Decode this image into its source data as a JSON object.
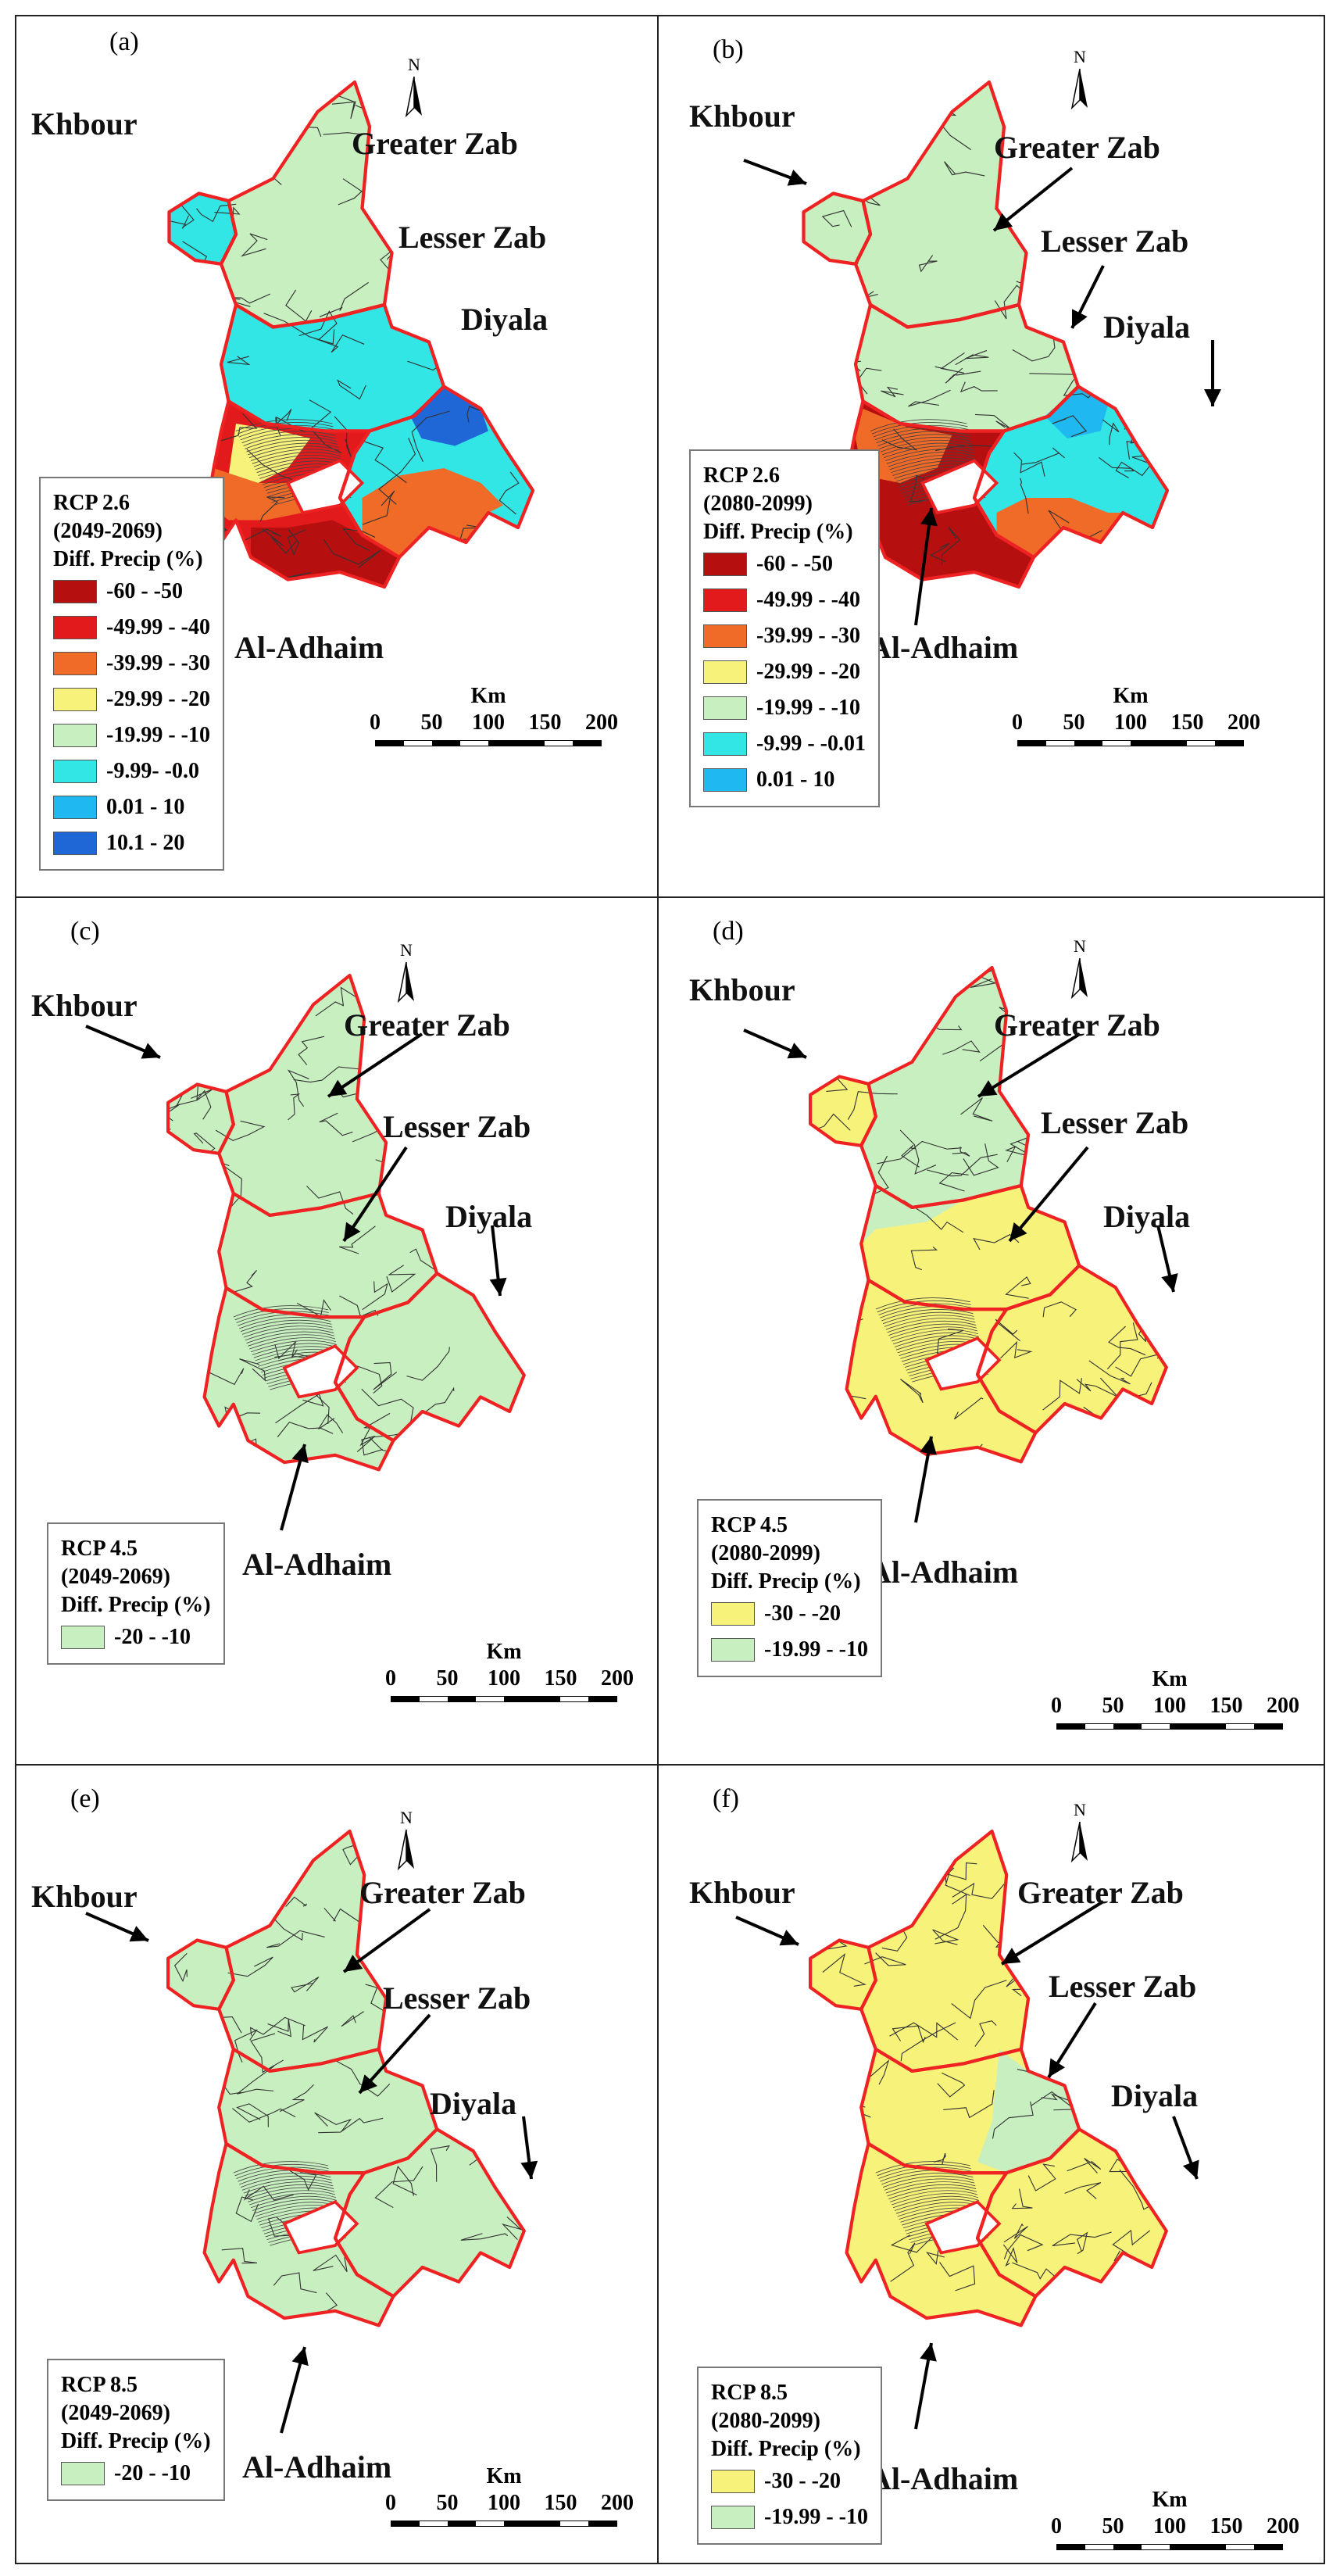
{
  "regions": {
    "khbour": "Khbour",
    "greater_zab": "Greater Zab",
    "lesser_zab": "Lesser Zab",
    "diyala": "Diyala",
    "al_adhaim": "Al-Adhaim"
  },
  "north_symbol": "N",
  "scale_bar": {
    "unit": "Km",
    "ticks": [
      "0",
      "50",
      "100",
      "150",
      "200"
    ]
  },
  "colors": {
    "c_60_50": "#b50f0f",
    "c_50_40": "#e31a1c",
    "c_40_30": "#f06a28",
    "c_30_20": "#f7f27a",
    "c_20_10": "#c8efc0",
    "c_10_0": "#33e6e6",
    "c_0_10": "#1fb8f0",
    "c_10_20": "#1f67d6",
    "boundary": "#ee2222"
  },
  "panels": [
    {
      "label": "(a)",
      "legend": {
        "title1": "RCP 2.6",
        "title2": "(2049-2069)",
        "title3": "Diff. Precip (%)",
        "items": [
          {
            "label": "-60 - -50",
            "color": "#b50f0f"
          },
          {
            "label": "-49.99 - -40",
            "color": "#e31a1c"
          },
          {
            "label": "-39.99 - -30",
            "color": "#f06a28"
          },
          {
            "label": "-29.99 - -20",
            "color": "#f7f27a"
          },
          {
            "label": "-19.99 - -10",
            "color": "#c8efc0"
          },
          {
            "label": "-9.99- -0.0",
            "color": "#33e6e6"
          },
          {
            "label": "0.01 - 10",
            "color": "#1fb8f0"
          },
          {
            "label": "10.1 - 20",
            "color": "#1f67d6"
          }
        ]
      }
    },
    {
      "label": "(b)",
      "legend": {
        "title1": "RCP 2.6",
        "title2": "(2080-2099)",
        "title3": "Diff. Precip (%)",
        "items": [
          {
            "label": "-60 - -50",
            "color": "#b50f0f"
          },
          {
            "label": "-49.99 - -40",
            "color": "#e31a1c"
          },
          {
            "label": "-39.99 - -30",
            "color": "#f06a28"
          },
          {
            "label": "-29.99 - -20",
            "color": "#f7f27a"
          },
          {
            "label": "-19.99 - -10",
            "color": "#c8efc0"
          },
          {
            "label": "-9.99 - -0.01",
            "color": "#33e6e6"
          },
          {
            "label": "0.01 - 10",
            "color": "#1fb8f0"
          }
        ]
      }
    },
    {
      "label": "(c)",
      "legend": {
        "title1": "RCP 4.5",
        "title2": "(2049-2069)",
        "title3": "Diff. Precip (%)",
        "items": [
          {
            "label": "-20 - -10",
            "color": "#c8efc0"
          }
        ]
      }
    },
    {
      "label": "(d)",
      "legend": {
        "title1": "RCP 4.5",
        "title2": "(2080-2099)",
        "title3": "Diff. Precip (%)",
        "items": [
          {
            "label": "-30 - -20",
            "color": "#f7f27a"
          },
          {
            "label": "-19.99 - -10",
            "color": "#c8efc0"
          }
        ]
      }
    },
    {
      "label": "(e)",
      "legend": {
        "title1": "RCP 8.5",
        "title2": "(2049-2069)",
        "title3": "Diff. Precip (%)",
        "items": [
          {
            "label": "-20 - -10",
            "color": "#c8efc0"
          }
        ]
      }
    },
    {
      "label": "(f)",
      "legend": {
        "title1": "RCP 8.5",
        "title2": "(2080-2099)",
        "title3": "Diff. Precip (%)",
        "items": [
          {
            "label": "-30 - -20",
            "color": "#f7f27a"
          },
          {
            "label": "-19.99 - -10",
            "color": "#c8efc0"
          }
        ]
      }
    }
  ]
}
